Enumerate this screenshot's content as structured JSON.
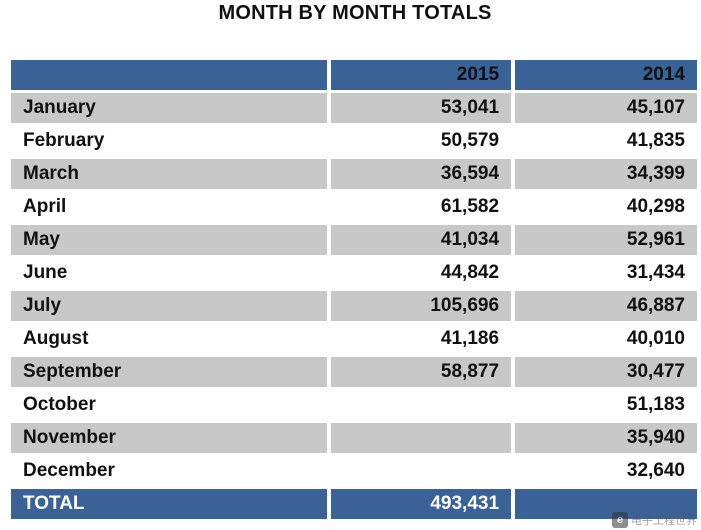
{
  "title": "MONTH BY MONTH TOTALS",
  "columns": [
    "",
    "2015",
    "2014"
  ],
  "rows": [
    {
      "month": "January",
      "y2015": "53,041",
      "y2014": "45,107"
    },
    {
      "month": "February",
      "y2015": "50,579",
      "y2014": "41,835"
    },
    {
      "month": "March",
      "y2015": "36,594",
      "y2014": "34,399"
    },
    {
      "month": "April",
      "y2015": "61,582",
      "y2014": "40,298"
    },
    {
      "month": "May",
      "y2015": "41,034",
      "y2014": "52,961"
    },
    {
      "month": "June",
      "y2015": "44,842",
      "y2014": "31,434"
    },
    {
      "month": "July",
      "y2015": "105,696",
      "y2014": "46,887"
    },
    {
      "month": "August",
      "y2015": "41,186",
      "y2014": "40,010"
    },
    {
      "month": "September",
      "y2015": "58,877",
      "y2014": "30,477"
    },
    {
      "month": "October",
      "y2015": "",
      "y2014": "51,183"
    },
    {
      "month": "November",
      "y2015": "",
      "y2014": "35,940"
    },
    {
      "month": "December",
      "y2015": "",
      "y2014": "32,640"
    }
  ],
  "total": {
    "label": "TOTAL",
    "y2015": "493,431",
    "y2014": ""
  },
  "watermark": {
    "text": "电子工程世界"
  },
  "colors": {
    "header": "#3a6296",
    "shaded_row": "#c8c8c8"
  }
}
